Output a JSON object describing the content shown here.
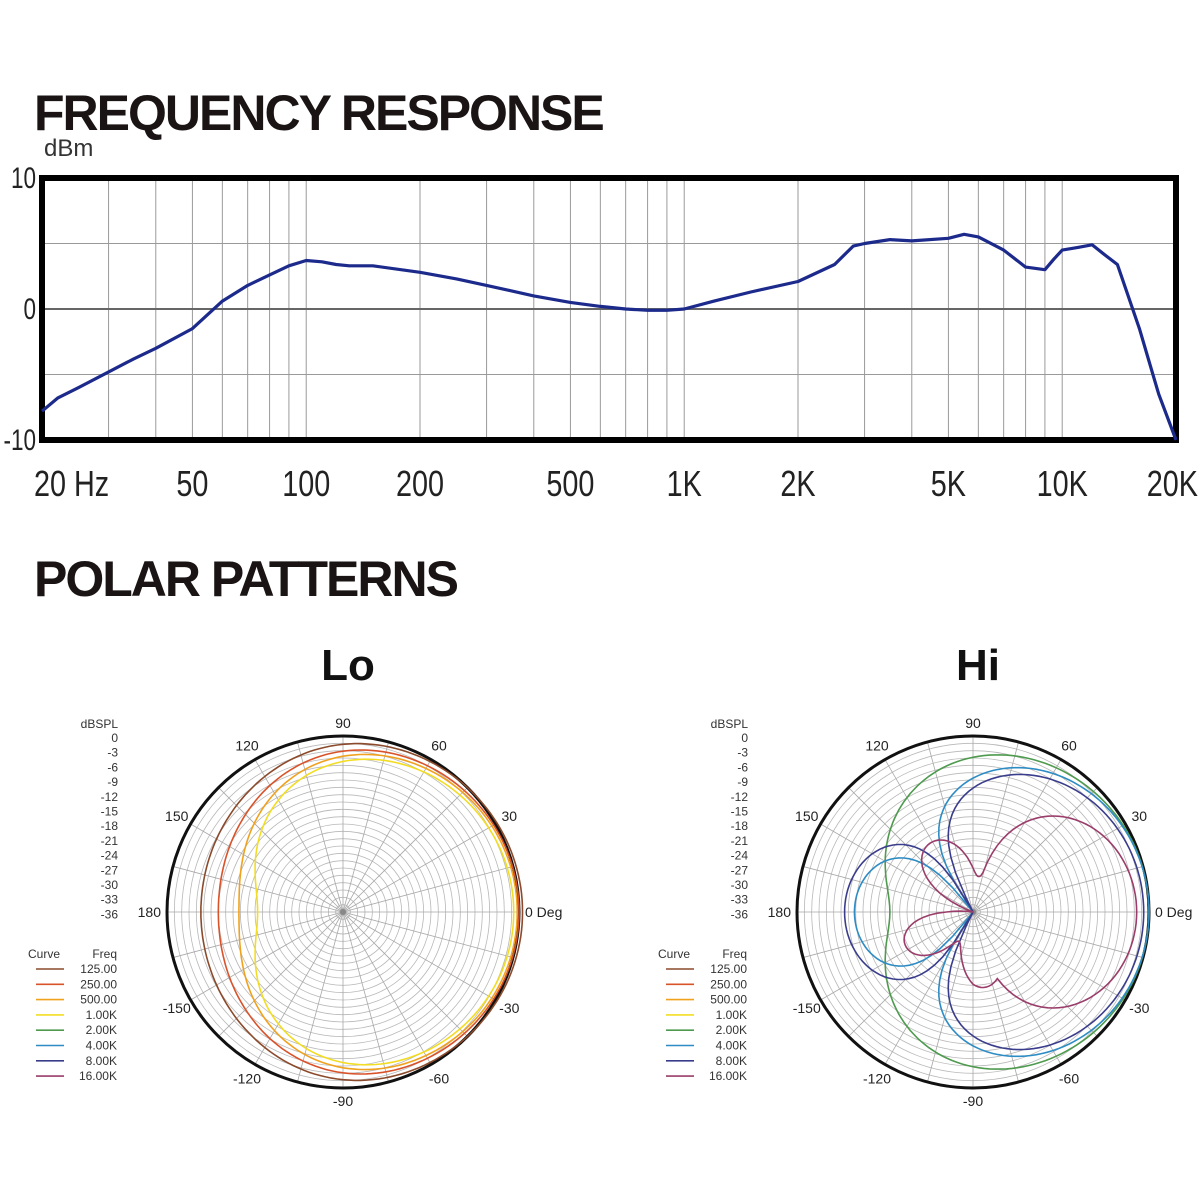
{
  "headings": {
    "frequency_response": "FREQUENCY RESPONSE",
    "polar_patterns": "POLAR PATTERNS"
  },
  "colors": {
    "response_line": "#1c2a8c",
    "grid": "#9a9a9a",
    "frame": "#000000"
  },
  "chart_data": [
    {
      "type": "line",
      "title": "FREQUENCY RESPONSE",
      "ylabel": "dBm",
      "xscale": "log",
      "xlim": [
        20,
        20000
      ],
      "ylim": [
        -10,
        10
      ],
      "x_tick_labels": [
        {
          "value": 20,
          "label": "20 Hz"
        },
        {
          "value": 50,
          "label": "50"
        },
        {
          "value": 100,
          "label": "100"
        },
        {
          "value": 200,
          "label": "200"
        },
        {
          "value": 500,
          "label": "500"
        },
        {
          "value": 1000,
          "label": "1K"
        },
        {
          "value": 2000,
          "label": "2K"
        },
        {
          "value": 5000,
          "label": "5K"
        },
        {
          "value": 10000,
          "label": "10K"
        },
        {
          "value": 20000,
          "label": "20K"
        }
      ],
      "y_tick_labels": [
        {
          "value": 10,
          "label": "10"
        },
        {
          "value": 0,
          "label": "0"
        },
        {
          "value": -10,
          "label": "-10"
        }
      ],
      "grid": true,
      "series": [
        {
          "color": "#1c2a8c",
          "x": [
            20,
            22,
            25,
            30,
            35,
            40,
            50,
            60,
            70,
            80,
            90,
            100,
            110,
            120,
            130,
            150,
            200,
            250,
            300,
            400,
            500,
            600,
            700,
            800,
            900,
            1000,
            1200,
            1500,
            2000,
            2500,
            2800,
            3000,
            3500,
            4000,
            5000,
            5500,
            6000,
            7000,
            8000,
            9000,
            9500,
            10000,
            11000,
            12000,
            13000,
            14000,
            16000,
            18000,
            20000
          ],
          "y": [
            -7.8,
            -6.8,
            -6.0,
            -4.8,
            -3.8,
            -3.0,
            -1.5,
            0.6,
            1.8,
            2.6,
            3.3,
            3.7,
            3.6,
            3.4,
            3.3,
            3.3,
            2.8,
            2.3,
            1.8,
            1.0,
            0.5,
            0.2,
            0.0,
            -0.1,
            -0.1,
            0.0,
            0.6,
            1.3,
            2.1,
            3.4,
            4.8,
            5.0,
            5.3,
            5.2,
            5.4,
            5.7,
            5.5,
            4.5,
            3.2,
            3.0,
            3.8,
            4.5,
            4.7,
            4.9,
            4.1,
            3.4,
            -1.5,
            -6.5,
            -10.0
          ]
        }
      ]
    },
    {
      "type": "polar",
      "title": "Lo",
      "r_label": "dBSPL",
      "r_tick_labels": [
        "0",
        "-3",
        "-6",
        "-9",
        "-12",
        "-15",
        "-18",
        "-21",
        "-24",
        "-27",
        "-30",
        "-33",
        "-36"
      ],
      "angle_labels": [
        {
          "angle": 0,
          "label": "0 Deg"
        },
        {
          "angle": 30,
          "label": "30"
        },
        {
          "angle": 60,
          "label": "60"
        },
        {
          "angle": 90,
          "label": "90"
        },
        {
          "angle": 120,
          "label": "120"
        },
        {
          "angle": 150,
          "label": "150"
        },
        {
          "angle": 180,
          "label": "180"
        },
        {
          "angle": -150,
          "label": "-150"
        },
        {
          "angle": -120,
          "label": "-120"
        },
        {
          "angle": -90,
          "label": "-90"
        },
        {
          "angle": -60,
          "label": "-60"
        },
        {
          "angle": -30,
          "label": "-30"
        }
      ],
      "legend": {
        "curve_header": "Curve",
        "freq_header": "Freq"
      },
      "series": [
        {
          "name": "125.00",
          "color": "#8b4a2b",
          "pattern": "cardioid",
          "back_db": -7.5,
          "scale": 1.02
        },
        {
          "name": "250.00",
          "color": "#d9532a",
          "pattern": "cardioid",
          "back_db": -10.5,
          "scale": 1.0
        },
        {
          "name": "500.00",
          "color": "#f0a21e",
          "pattern": "cardioid",
          "back_db": -14.5,
          "scale": 0.99
        },
        {
          "name": "1.00K",
          "color": "#f2dd24",
          "pattern": "cardioid",
          "back_db": -18.0,
          "scale": 0.97
        },
        {
          "name": "2.00K",
          "color": "#4e9a4e",
          "pattern": null
        },
        {
          "name": "4.00K",
          "color": "#2e8cc4",
          "pattern": null
        },
        {
          "name": "8.00K",
          "color": "#3a3d8c",
          "pattern": null
        },
        {
          "name": "16.00K",
          "color": "#9a3d6a",
          "pattern": null
        }
      ]
    },
    {
      "type": "polar",
      "title": "Hi",
      "r_label": "dBSPL",
      "r_tick_labels": [
        "0",
        "-3",
        "-6",
        "-9",
        "-12",
        "-15",
        "-18",
        "-21",
        "-24",
        "-27",
        "-30",
        "-33",
        "-36"
      ],
      "angle_labels": [
        {
          "angle": 0,
          "label": "0 Deg"
        },
        {
          "angle": 30,
          "label": "30"
        },
        {
          "angle": 60,
          "label": "60"
        },
        {
          "angle": 90,
          "label": "90"
        },
        {
          "angle": 120,
          "label": "120"
        },
        {
          "angle": 150,
          "label": "150"
        },
        {
          "angle": 180,
          "label": "180"
        },
        {
          "angle": -150,
          "label": "-150"
        },
        {
          "angle": -120,
          "label": "-120"
        },
        {
          "angle": -90,
          "label": "-90"
        },
        {
          "angle": -60,
          "label": "-60"
        },
        {
          "angle": -30,
          "label": "-30"
        }
      ],
      "legend": {
        "curve_header": "Curve",
        "freq_header": "Freq"
      },
      "series": [
        {
          "name": "125.00",
          "color": "#8b4a2b",
          "pattern": null
        },
        {
          "name": "250.00",
          "color": "#d9532a",
          "pattern": null
        },
        {
          "name": "500.00",
          "color": "#f0a21e",
          "pattern": null
        },
        {
          "name": "1.00K",
          "color": "#f2dd24",
          "pattern": null
        },
        {
          "name": "2.00K",
          "color": "#4e9a4e",
          "pattern": "cardioid",
          "back_db": -19.0,
          "scale": 1.0
        },
        {
          "name": "4.00K",
          "color": "#2e8cc4",
          "pattern": "supercardioid",
          "back_db": -10.5,
          "scale": 1.0
        },
        {
          "name": "8.00K",
          "color": "#3a3d8c",
          "pattern": "supercardioid",
          "back_db": -8.0,
          "scale": 0.97
        },
        {
          "name": "16.00K",
          "color": "#9a3d6a",
          "pattern": "lobe",
          "back_db": -28.0,
          "scale": 0.93
        }
      ]
    }
  ]
}
